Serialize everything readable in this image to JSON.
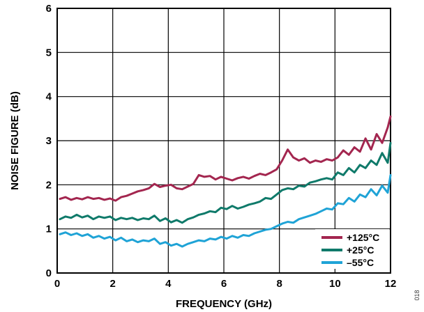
{
  "figure_id": "018",
  "chart_data": {
    "type": "line",
    "xlabel": "FREQUENCY (GHz)",
    "ylabel": "NOISE FIGURE (dB)",
    "xlim": [
      0,
      12
    ],
    "ylim": [
      0,
      6
    ],
    "xticks": [
      0,
      2,
      4,
      6,
      8,
      10,
      12
    ],
    "yticks": [
      0,
      1,
      2,
      3,
      4,
      5,
      6
    ],
    "grid": true,
    "legend_position": "bottom-right",
    "series": [
      {
        "name": "+125°C",
        "color": "#a3264f",
        "x": [
          0.1,
          0.3,
          0.5,
          0.7,
          0.9,
          1.1,
          1.3,
          1.5,
          1.7,
          1.9,
          2.1,
          2.3,
          2.5,
          2.7,
          2.9,
          3.1,
          3.3,
          3.5,
          3.7,
          3.9,
          4.1,
          4.3,
          4.5,
          4.7,
          4.9,
          5.1,
          5.3,
          5.5,
          5.7,
          5.9,
          6.1,
          6.3,
          6.5,
          6.7,
          6.9,
          7.1,
          7.3,
          7.5,
          7.7,
          7.9,
          8.1,
          8.3,
          8.5,
          8.7,
          8.9,
          9.1,
          9.3,
          9.5,
          9.7,
          9.9,
          10.1,
          10.3,
          10.5,
          10.7,
          10.9,
          11.1,
          11.3,
          11.5,
          11.7,
          11.9,
          12.0
        ],
        "values": [
          1.68,
          1.72,
          1.66,
          1.7,
          1.67,
          1.72,
          1.68,
          1.7,
          1.66,
          1.69,
          1.64,
          1.72,
          1.75,
          1.8,
          1.85,
          1.88,
          1.92,
          2.02,
          1.95,
          1.98,
          2.0,
          1.92,
          1.9,
          1.96,
          2.02,
          2.22,
          2.18,
          2.2,
          2.12,
          2.18,
          2.14,
          2.1,
          2.15,
          2.18,
          2.14,
          2.2,
          2.25,
          2.22,
          2.28,
          2.35,
          2.55,
          2.8,
          2.62,
          2.55,
          2.6,
          2.5,
          2.55,
          2.52,
          2.58,
          2.55,
          2.62,
          2.78,
          2.68,
          2.85,
          2.75,
          3.05,
          2.8,
          3.15,
          2.95,
          3.3,
          3.55
        ]
      },
      {
        "name": "+25°C",
        "color": "#0f7a6a",
        "x": [
          0.1,
          0.3,
          0.5,
          0.7,
          0.9,
          1.1,
          1.3,
          1.5,
          1.7,
          1.9,
          2.1,
          2.3,
          2.5,
          2.7,
          2.9,
          3.1,
          3.3,
          3.5,
          3.7,
          3.9,
          4.1,
          4.3,
          4.5,
          4.7,
          4.9,
          5.1,
          5.3,
          5.5,
          5.7,
          5.9,
          6.1,
          6.3,
          6.5,
          6.7,
          6.9,
          7.1,
          7.3,
          7.5,
          7.7,
          7.9,
          8.1,
          8.3,
          8.5,
          8.7,
          8.9,
          9.1,
          9.3,
          9.5,
          9.7,
          9.9,
          10.1,
          10.3,
          10.5,
          10.7,
          10.9,
          11.1,
          11.3,
          11.5,
          11.7,
          11.9,
          12.0
        ],
        "values": [
          1.22,
          1.28,
          1.25,
          1.32,
          1.26,
          1.3,
          1.22,
          1.28,
          1.25,
          1.28,
          1.2,
          1.25,
          1.22,
          1.25,
          1.2,
          1.24,
          1.22,
          1.3,
          1.18,
          1.24,
          1.15,
          1.2,
          1.14,
          1.22,
          1.26,
          1.32,
          1.35,
          1.4,
          1.38,
          1.48,
          1.45,
          1.52,
          1.46,
          1.5,
          1.55,
          1.58,
          1.62,
          1.7,
          1.68,
          1.78,
          1.88,
          1.92,
          1.9,
          1.98,
          1.96,
          2.05,
          2.08,
          2.12,
          2.15,
          2.12,
          2.28,
          2.22,
          2.38,
          2.28,
          2.45,
          2.38,
          2.55,
          2.45,
          2.72,
          2.5,
          2.95
        ]
      },
      {
        "name": "–55°C",
        "color": "#1fa3d6",
        "x": [
          0.1,
          0.3,
          0.5,
          0.7,
          0.9,
          1.1,
          1.3,
          1.5,
          1.7,
          1.9,
          2.1,
          2.3,
          2.5,
          2.7,
          2.9,
          3.1,
          3.3,
          3.5,
          3.7,
          3.9,
          4.1,
          4.3,
          4.5,
          4.7,
          4.9,
          5.1,
          5.3,
          5.5,
          5.7,
          5.9,
          6.1,
          6.3,
          6.5,
          6.7,
          6.9,
          7.1,
          7.3,
          7.5,
          7.7,
          7.9,
          8.1,
          8.3,
          8.5,
          8.7,
          8.9,
          9.1,
          9.3,
          9.5,
          9.7,
          9.9,
          10.1,
          10.3,
          10.5,
          10.7,
          10.9,
          11.1,
          11.3,
          11.5,
          11.7,
          11.9,
          12.0
        ],
        "values": [
          0.88,
          0.92,
          0.86,
          0.9,
          0.84,
          0.88,
          0.8,
          0.84,
          0.78,
          0.82,
          0.74,
          0.8,
          0.72,
          0.76,
          0.7,
          0.74,
          0.72,
          0.78,
          0.66,
          0.7,
          0.62,
          0.66,
          0.6,
          0.66,
          0.7,
          0.74,
          0.72,
          0.78,
          0.76,
          0.82,
          0.78,
          0.84,
          0.8,
          0.86,
          0.84,
          0.9,
          0.94,
          0.98,
          1.0,
          1.06,
          1.12,
          1.16,
          1.14,
          1.22,
          1.26,
          1.3,
          1.34,
          1.4,
          1.46,
          1.44,
          1.58,
          1.56,
          1.7,
          1.62,
          1.78,
          1.72,
          1.9,
          1.76,
          1.98,
          1.82,
          2.22
        ]
      }
    ]
  }
}
